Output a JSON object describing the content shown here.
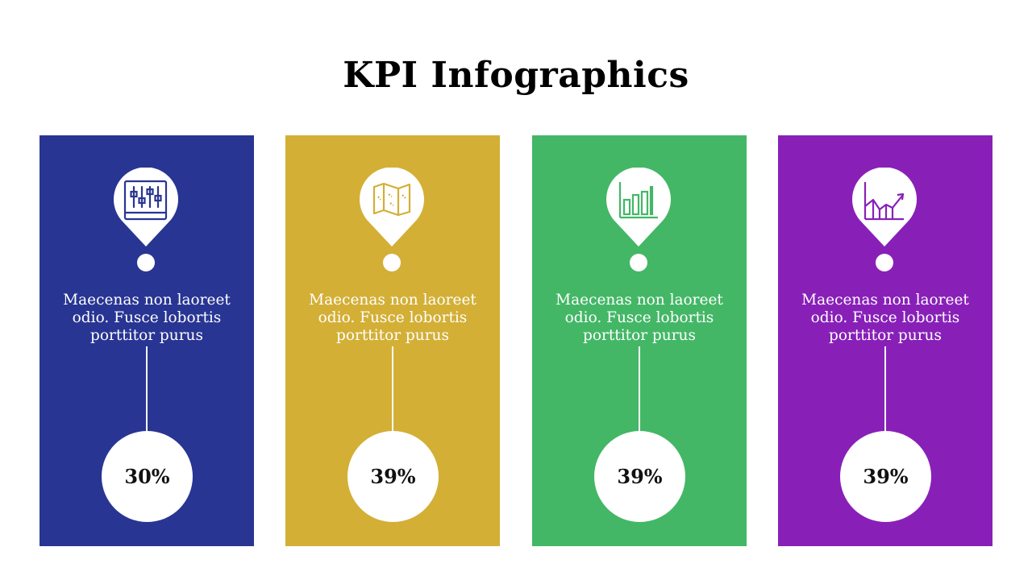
{
  "title": "KPI Infographics",
  "cards": [
    {
      "color": "#283593",
      "icon": "equalizer-sliders-icon",
      "text": "Maecenas non laoreet odio. Fusce lobortis porttitor purus",
      "value": "30%"
    },
    {
      "color": "#d3af36",
      "icon": "map-icon",
      "text": "Maecenas non laoreet odio. Fusce lobortis porttitor purus",
      "value": "39%"
    },
    {
      "color": "#43b766",
      "icon": "bar-chart-icon",
      "text": "Maecenas non laoreet odio. Fusce lobortis porttitor purus",
      "value": "39%"
    },
    {
      "color": "#8820b8",
      "icon": "growth-chart-icon",
      "text": "Maecenas non laoreet odio. Fusce lobortis porttitor purus",
      "value": "39%"
    }
  ]
}
